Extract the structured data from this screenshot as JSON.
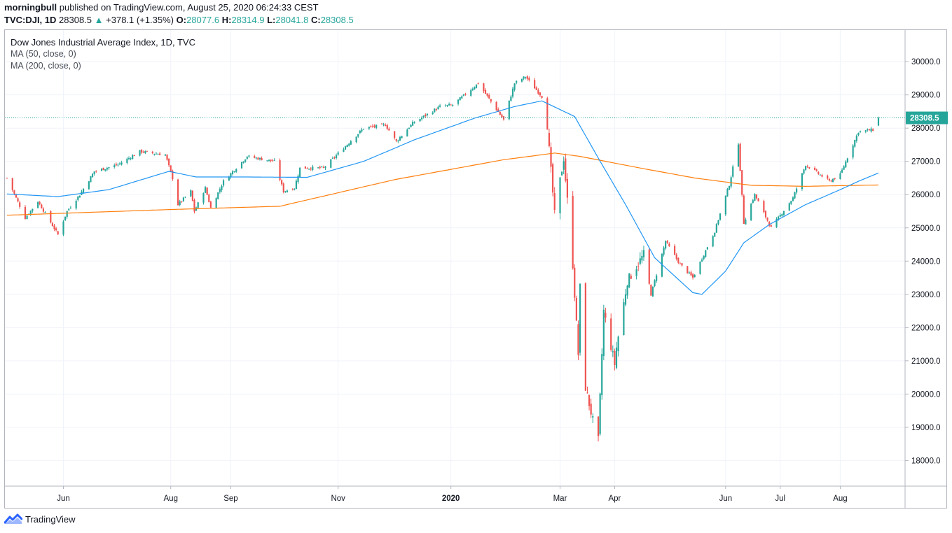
{
  "header": {
    "author": "morningbull",
    "published": "published on TradingView.com, August 25, 2020 06:24:33 CEST",
    "symbol": "TVC:DJI, 1D",
    "last": "28308.5",
    "change": "+378.1 (+1.35%)",
    "o_label": "O:",
    "o_value": "28077.6",
    "h_label": "H:",
    "h_value": "28314.9",
    "l_label": "L:",
    "l_value": "28041.8",
    "c_label": "C:",
    "c_value": "28308.5"
  },
  "legend": {
    "title": "Dow Jones Industrial Average Index, 1D, TVC",
    "ma50": "MA (50, close, 0)",
    "ma200": "MA (200, close, 0)"
  },
  "footer": {
    "brand": "TradingView"
  },
  "colors": {
    "up": "#26a69a",
    "down": "#ef5350",
    "ma50": "#2196f3",
    "ma200": "#ff7f0e",
    "grid": "#f0f3fa",
    "price_label": "#26a69a"
  },
  "chart_data": {
    "type": "candlestick",
    "price_scale": {
      "ticks": [
        "18000.0",
        "19000.0",
        "20000.0",
        "21000.0",
        "22000.0",
        "23000.0",
        "24000.0",
        "25000.0",
        "26000.0",
        "27000.0",
        "28000.0",
        "29000.0",
        "30000.0"
      ],
      "range": [
        17230,
        30950
      ],
      "last_price_label": "28308.5"
    },
    "time_scale": {
      "labels": [
        {
          "text": "Jun",
          "date": "2019-06-03"
        },
        {
          "text": "Aug",
          "date": "2019-08-01"
        },
        {
          "text": "Sep",
          "date": "2019-09-03"
        },
        {
          "text": "Nov",
          "date": "2019-11-01"
        },
        {
          "text": "2020",
          "date": "2020-01-02",
          "bold": true
        },
        {
          "text": "Mar",
          "date": "2020-03-02"
        },
        {
          "text": "Apr",
          "date": "2020-04-01"
        },
        {
          "text": "Jun",
          "date": "2020-06-01"
        },
        {
          "text": "Jul",
          "date": "2020-07-01"
        },
        {
          "text": "Aug",
          "date": "2020-08-03"
        }
      ],
      "start": "2019-05-03",
      "end": "2020-08-24"
    },
    "close_anchors": [
      [
        "2019-05-03",
        26500
      ],
      [
        "2019-05-13",
        25300
      ],
      [
        "2019-05-20",
        25800
      ],
      [
        "2019-05-31",
        24800
      ],
      [
        "2019-06-05",
        25500
      ],
      [
        "2019-06-12",
        26000
      ],
      [
        "2019-06-20",
        26700
      ],
      [
        "2019-07-03",
        26900
      ],
      [
        "2019-07-15",
        27300
      ],
      [
        "2019-07-29",
        27200
      ],
      [
        "2019-08-02",
        26500
      ],
      [
        "2019-08-05",
        25700
      ],
      [
        "2019-08-12",
        26100
      ],
      [
        "2019-08-14",
        25500
      ],
      [
        "2019-08-20",
        26200
      ],
      [
        "2019-08-23",
        25600
      ],
      [
        "2019-08-30",
        26400
      ],
      [
        "2019-09-12",
        27150
      ],
      [
        "2019-09-27",
        27000
      ],
      [
        "2019-10-02",
        26100
      ],
      [
        "2019-10-08",
        26200
      ],
      [
        "2019-10-11",
        26800
      ],
      [
        "2019-10-24",
        26800
      ],
      [
        "2019-11-04",
        27400
      ],
      [
        "2019-11-15",
        28000
      ],
      [
        "2019-11-27",
        28100
      ],
      [
        "2019-12-03",
        27600
      ],
      [
        "2019-12-12",
        28150
      ],
      [
        "2019-12-27",
        28650
      ],
      [
        "2020-01-03",
        28700
      ],
      [
        "2020-01-17",
        29350
      ],
      [
        "2020-01-31",
        28250
      ],
      [
        "2020-02-06",
        29350
      ],
      [
        "2020-02-12",
        29550
      ],
      [
        "2020-02-21",
        28950
      ],
      [
        "2020-02-24",
        28000
      ],
      [
        "2020-02-28",
        25400
      ],
      [
        "2020-03-04",
        27100
      ],
      [
        "2020-03-09",
        23900
      ],
      [
        "2020-03-12",
        21200
      ],
      [
        "2020-03-13",
        23200
      ],
      [
        "2020-03-16",
        20200
      ],
      [
        "2020-03-20",
        19200
      ],
      [
        "2020-03-23",
        18600
      ],
      [
        "2020-03-26",
        22500
      ],
      [
        "2020-04-01",
        20900
      ],
      [
        "2020-04-02",
        21400
      ],
      [
        "2020-04-08",
        23400
      ],
      [
        "2020-04-17",
        24200
      ],
      [
        "2020-04-21",
        23000
      ],
      [
        "2020-04-29",
        24600
      ],
      [
        "2020-05-07",
        23900
      ],
      [
        "2020-05-14",
        23500
      ],
      [
        "2020-05-26",
        24900
      ],
      [
        "2020-06-03",
        26300
      ],
      [
        "2020-06-08",
        27550
      ],
      [
        "2020-06-11",
        25150
      ],
      [
        "2020-06-17",
        26000
      ],
      [
        "2020-06-26",
        25000
      ],
      [
        "2020-07-08",
        25900
      ],
      [
        "2020-07-15",
        26900
      ],
      [
        "2020-07-28",
        26400
      ],
      [
        "2020-08-03",
        26600
      ],
      [
        "2020-08-13",
        27900
      ],
      [
        "2020-08-21",
        27950
      ],
      [
        "2020-08-24",
        28308.5
      ]
    ],
    "ma50_anchors": [
      [
        "2019-05-03",
        26020
      ],
      [
        "2019-05-31",
        25940
      ],
      [
        "2019-06-28",
        26150
      ],
      [
        "2019-07-31",
        26700
      ],
      [
        "2019-08-15",
        26530
      ],
      [
        "2019-09-13",
        26530
      ],
      [
        "2019-10-15",
        26520
      ],
      [
        "2019-11-15",
        27000
      ],
      [
        "2019-12-13",
        27650
      ],
      [
        "2020-01-15",
        28300
      ],
      [
        "2020-02-06",
        28650
      ],
      [
        "2020-02-21",
        28820
      ],
      [
        "2020-03-10",
        28350
      ],
      [
        "2020-03-23",
        27100
      ],
      [
        "2020-04-07",
        25700
      ],
      [
        "2020-04-23",
        24100
      ],
      [
        "2020-05-05",
        23500
      ],
      [
        "2020-05-14",
        23050
      ],
      [
        "2020-05-19",
        23000
      ],
      [
        "2020-06-01",
        23700
      ],
      [
        "2020-06-11",
        24550
      ],
      [
        "2020-06-25",
        25100
      ],
      [
        "2020-07-15",
        25700
      ],
      [
        "2020-08-03",
        26150
      ],
      [
        "2020-08-13",
        26400
      ],
      [
        "2020-08-24",
        26650
      ]
    ],
    "ma200_anchors": [
      [
        "2019-05-03",
        25380
      ],
      [
        "2019-07-31",
        25550
      ],
      [
        "2019-09-30",
        25650
      ],
      [
        "2019-12-02",
        26450
      ],
      [
        "2020-01-31",
        27050
      ],
      [
        "2020-02-28",
        27250
      ],
      [
        "2020-03-13",
        27150
      ],
      [
        "2020-04-15",
        26800
      ],
      [
        "2020-05-15",
        26500
      ],
      [
        "2020-06-15",
        26280
      ],
      [
        "2020-07-15",
        26250
      ],
      [
        "2020-08-24",
        26290
      ]
    ]
  }
}
